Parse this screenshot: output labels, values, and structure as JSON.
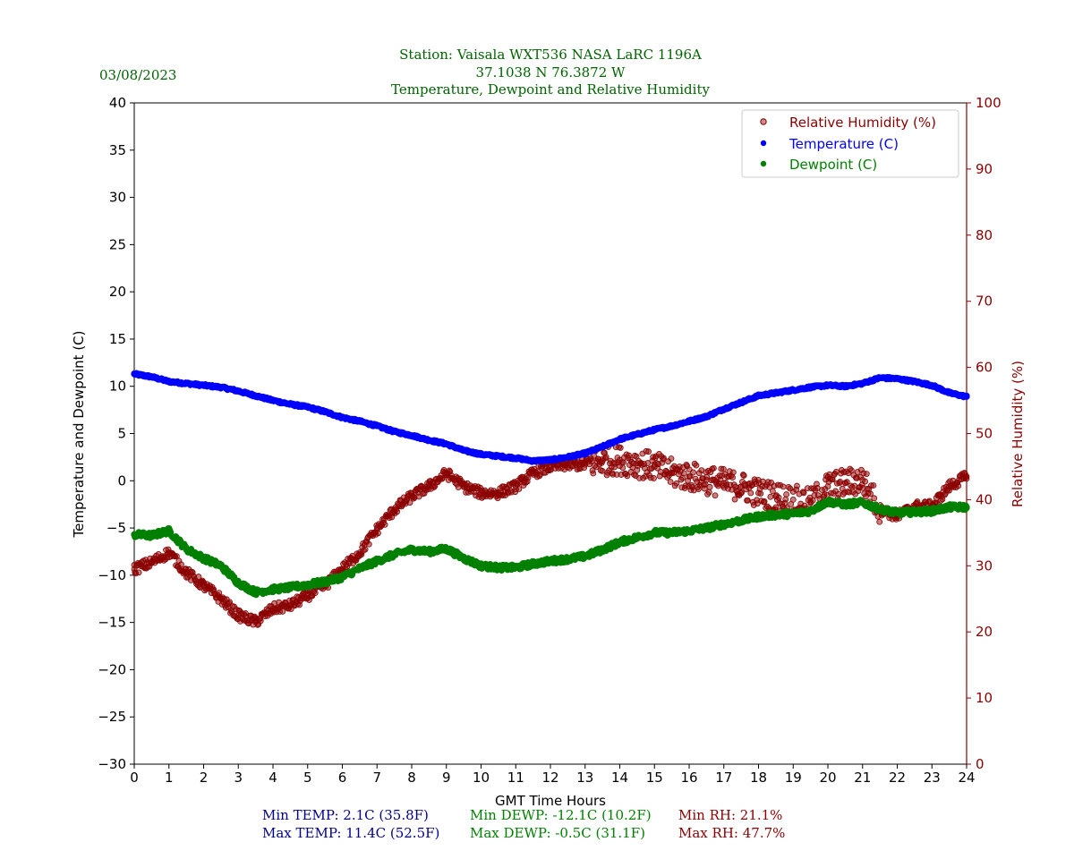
{
  "header": {
    "date": "03/08/2023",
    "station_line": "Station:  Vaisala WXT536  NASA LaRC 1196A",
    "coords_line": "37.1038 N 76.3872 W",
    "subtitle_line": "Temperature, Dewpoint and Relative Humidity"
  },
  "stats": {
    "min_temp": "Min TEMP: 2.1C (35.8F)",
    "max_temp": "Max TEMP: 11.4C (52.5F)",
    "min_dewp": "Min DEWP: -12.1C (10.2F)",
    "max_dewp": "Max DEWP: -0.5C (31.1F)",
    "min_rh": "Min RH: 21.1%",
    "max_rh": "Max RH: 47.7%"
  },
  "colors": {
    "header": "#006400",
    "temperature": "#0000ff",
    "dewpoint": "#008000",
    "rh": "#8b0000",
    "temp_stats": "#00008b"
  },
  "chart_data": {
    "type": "scatter",
    "title": "Temperature, Dewpoint and Relative Humidity",
    "xlabel": "GMT Time Hours",
    "ylabel": "Temperature and Dewpoint (C)",
    "y2label": "Relative Humidity (%)",
    "xlim": [
      0,
      24
    ],
    "ylim": [
      -30,
      40
    ],
    "y2lim": [
      0,
      100
    ],
    "xticks": [
      0,
      1,
      2,
      3,
      4,
      5,
      6,
      7,
      8,
      9,
      10,
      11,
      12,
      13,
      14,
      15,
      16,
      17,
      18,
      19,
      20,
      21,
      22,
      23,
      24
    ],
    "yticks": [
      -30,
      -25,
      -20,
      -15,
      -10,
      -5,
      0,
      5,
      10,
      15,
      20,
      25,
      30,
      35,
      40
    ],
    "y2ticks": [
      0,
      10,
      20,
      30,
      40,
      50,
      60,
      70,
      80,
      90,
      100
    ],
    "legend_position": "top-right",
    "legend": [
      "Relative Humidity (%)",
      "Temperature (C)",
      "Dewpoint (C)"
    ],
    "series": [
      {
        "name": "Temperature (C)",
        "axis": "left",
        "x": [
          0,
          0.5,
          1,
          1.5,
          2,
          2.5,
          3,
          3.5,
          4,
          4.5,
          5,
          5.5,
          6,
          6.5,
          7,
          7.5,
          8,
          8.5,
          9,
          9.5,
          10,
          10.5,
          11,
          11.5,
          12,
          12.5,
          13,
          13.5,
          14,
          14.5,
          15,
          15.5,
          16,
          16.5,
          17,
          17.5,
          18,
          18.5,
          19,
          19.5,
          20,
          20.5,
          21,
          21.5,
          22,
          22.5,
          23,
          23.5,
          24
        ],
        "y": [
          11.3,
          11.0,
          10.5,
          10.3,
          10.1,
          9.9,
          9.5,
          9.0,
          8.5,
          8.1,
          7.8,
          7.3,
          6.7,
          6.3,
          5.8,
          5.2,
          4.8,
          4.3,
          3.9,
          3.2,
          2.8,
          2.6,
          2.4,
          2.1,
          2.2,
          2.5,
          2.9,
          3.6,
          4.4,
          4.9,
          5.4,
          5.8,
          6.3,
          6.8,
          7.6,
          8.3,
          9.0,
          9.3,
          9.6,
          9.9,
          10.1,
          10.0,
          10.3,
          10.9,
          10.8,
          10.5,
          10.1,
          9.3,
          8.9
        ]
      },
      {
        "name": "Dewpoint (C)",
        "axis": "left",
        "x": [
          0,
          0.5,
          1,
          1.5,
          2,
          2.5,
          3,
          3.5,
          4,
          4.5,
          5,
          5.5,
          6,
          6.5,
          7,
          7.5,
          8,
          8.5,
          9,
          9.5,
          10,
          10.5,
          11,
          11.5,
          12,
          12.5,
          13,
          13.5,
          14,
          14.5,
          15,
          15.5,
          16,
          16.5,
          17,
          17.5,
          18,
          18.5,
          19,
          19.5,
          20,
          20.5,
          21,
          21.5,
          22,
          22.5,
          23,
          23.5,
          24
        ],
        "y": [
          -5.7,
          -5.8,
          -5.3,
          -7.2,
          -8.2,
          -9.0,
          -10.8,
          -11.8,
          -11.5,
          -11.3,
          -11.0,
          -10.7,
          -10.2,
          -9.3,
          -8.5,
          -7.8,
          -7.3,
          -7.5,
          -7.2,
          -8.2,
          -9.0,
          -9.2,
          -9.2,
          -8.8,
          -8.5,
          -8.3,
          -8.0,
          -7.3,
          -6.5,
          -6.0,
          -5.5,
          -5.5,
          -5.3,
          -5.0,
          -4.6,
          -4.2,
          -3.8,
          -3.6,
          -3.5,
          -3.2,
          -2.2,
          -2.5,
          -2.3,
          -3.0,
          -3.4,
          -3.3,
          -3.2,
          -2.8,
          -2.8
        ]
      },
      {
        "name": "Relative Humidity (%)",
        "axis": "right",
        "x": [
          0,
          0.5,
          1,
          1.5,
          2,
          2.5,
          3,
          3.5,
          4,
          4.5,
          5,
          5.5,
          6,
          6.5,
          7,
          7.5,
          8,
          8.5,
          9,
          9.5,
          10,
          10.5,
          11,
          11.5,
          12,
          12.5,
          13,
          13.5,
          14,
          14.5,
          15,
          15.5,
          16,
          16.5,
          17,
          17.5,
          18,
          18.5,
          19,
          19.5,
          20,
          20.5,
          21,
          21.5,
          22,
          22.5,
          23,
          23.5,
          24
        ],
        "y": [
          29.5,
          30.5,
          32.0,
          29.0,
          27.0,
          25.0,
          22.5,
          21.5,
          23.5,
          24.0,
          25.5,
          27.0,
          29.5,
          32.0,
          35.5,
          38.5,
          40.5,
          42.0,
          44.0,
          42.0,
          41.0,
          41.0,
          42.0,
          44.0,
          45.0,
          45.3,
          45.3,
          45.8,
          46.0,
          45.5,
          45.0,
          44.0,
          43.5,
          43.0,
          42.5,
          42.0,
          41.0,
          40.5,
          40.0,
          39.5,
          42.0,
          42.5,
          43.0,
          38.5,
          37.5,
          39.0,
          39.0,
          42.0,
          43.5
        ]
      }
    ],
    "stats": {
      "min_temp_c": 2.1,
      "min_temp_f": 35.8,
      "max_temp_c": 11.4,
      "max_temp_f": 52.5,
      "min_dewp_c": -12.1,
      "min_dewp_f": 10.2,
      "max_dewp_c": -0.5,
      "max_dewp_f": 31.1,
      "min_rh": 21.1,
      "max_rh": 47.7
    }
  }
}
